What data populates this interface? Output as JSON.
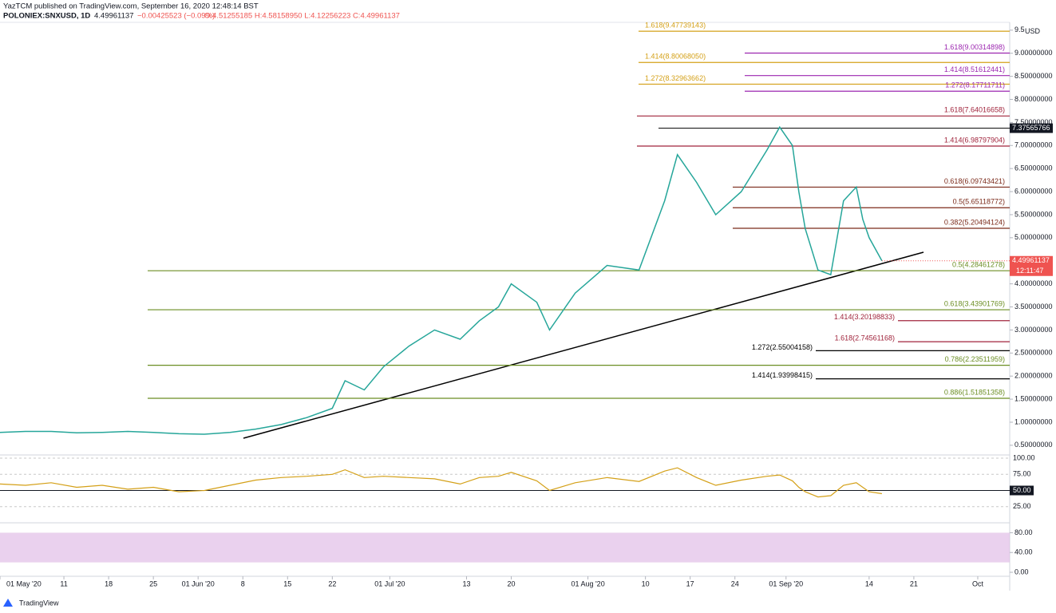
{
  "header": {
    "publisher": "YazTCM published on TradingView.com, September 16, 2020 12:48:14 BST",
    "symbol": "POLONIEX:SNXUSD, 1D",
    "last": "4.49961137",
    "change": "−0.00425523 (−0.09%)",
    "ohlc": "O:4.51255185 H:4.58158950 L:4.12256223 C:4.49961137"
  },
  "chart_data": {
    "type": "line",
    "x": [
      0,
      4,
      8,
      12,
      16,
      20,
      24,
      28,
      32,
      36,
      40,
      44,
      48,
      52,
      54,
      57,
      60,
      64,
      68,
      72,
      75,
      78,
      80,
      84,
      86,
      90,
      95,
      100,
      104,
      106,
      109,
      112,
      116,
      120,
      122,
      124,
      125,
      126,
      128,
      130,
      132,
      134,
      135,
      136,
      138
    ],
    "values": [
      0.78,
      0.8,
      0.8,
      0.77,
      0.78,
      0.8,
      0.78,
      0.75,
      0.74,
      0.78,
      0.85,
      0.95,
      1.1,
      1.3,
      1.9,
      1.7,
      2.2,
      2.65,
      3.0,
      2.8,
      3.2,
      3.5,
      4.0,
      3.6,
      3.0,
      3.8,
      4.4,
      4.3,
      5.8,
      6.8,
      6.2,
      5.5,
      6.0,
      6.9,
      7.4,
      7.0,
      6.0,
      5.2,
      4.3,
      4.2,
      5.8,
      6.1,
      5.4,
      5.0,
      4.5
    ],
    "color": "#26a69a",
    "xlim": [
      0,
      158
    ],
    "xticks": [
      {
        "value": 0,
        "label": "01 May '20"
      },
      {
        "value": 10,
        "label": "11"
      },
      {
        "value": 17,
        "label": "18"
      },
      {
        "value": 24,
        "label": "25"
      },
      {
        "value": 31,
        "label": "01 Jun '20"
      },
      {
        "value": 38,
        "label": "8"
      },
      {
        "value": 45,
        "label": "15"
      },
      {
        "value": 52,
        "label": "22"
      },
      {
        "value": 61,
        "label": "01 Jul '20"
      },
      {
        "value": 73,
        "label": "13"
      },
      {
        "value": 80,
        "label": "20"
      },
      {
        "value": 92,
        "label": "01 Aug '20"
      },
      {
        "value": 101,
        "label": "10"
      },
      {
        "value": 108,
        "label": "17"
      },
      {
        "value": 115,
        "label": "24"
      },
      {
        "value": 123,
        "label": "01 Sep '20"
      },
      {
        "value": 136,
        "label": "14"
      },
      {
        "value": 143,
        "label": "21"
      },
      {
        "value": 153,
        "label": "Oct"
      }
    ],
    "ylim": [
      0.29,
      9.67
    ],
    "yticks": [
      {
        "value": 0.5,
        "label": "0.50000000"
      },
      {
        "value": 1,
        "label": "1.00000000"
      },
      {
        "value": 1.5,
        "label": "1.50000000"
      },
      {
        "value": 2,
        "label": "2.00000000"
      },
      {
        "value": 2.5,
        "label": "2.50000000"
      },
      {
        "value": 3,
        "label": "3.00000000"
      },
      {
        "value": 3.5,
        "label": "3.50000000"
      },
      {
        "value": 4,
        "label": "4.00000000"
      },
      {
        "value": 4.5,
        "label": "4.50000000"
      },
      {
        "value": 5,
        "label": "5.00000000"
      },
      {
        "value": 5.5,
        "label": "5.50000000"
      },
      {
        "value": 6,
        "label": "6.00000000"
      },
      {
        "value": 6.5,
        "label": "6.50000000"
      },
      {
        "value": 7,
        "label": "7.00000000"
      },
      {
        "value": 7.5,
        "label": "7.50000000"
      },
      {
        "value": 8,
        "label": "8.00000000"
      },
      {
        "value": 8.5,
        "label": "8.50000000"
      },
      {
        "value": 9,
        "label": "9.00000000"
      },
      9.5
    ],
    "currency": "USD",
    "levels": [
      {
        "label": "1.618(9.47739143)",
        "value": 9.47739143,
        "color": "#d4a017"
      },
      {
        "label": "1.618(9.00314898)",
        "value": 9.00314898,
        "color": "#9c27b0"
      },
      {
        "label": "1.414(8.80068050)",
        "value": 8.8006805,
        "color": "#d4a017"
      },
      {
        "label": "1.414(8.51612441)",
        "value": 8.51612441,
        "color": "#9c27b0"
      },
      {
        "label": "1.272(8.32963662)",
        "value": 8.32963662,
        "color": "#d4a017"
      },
      {
        "label": "1.272(8.17711711)",
        "value": 8.17711711,
        "color": "#9c27b0"
      },
      {
        "label": "1.618(7.64016658)",
        "value": 7.64016658,
        "color": "#a0243c"
      },
      {
        "label": "1.414(6.98797904)",
        "value": 6.98797904,
        "color": "#a0243c"
      },
      {
        "label": "0.618(6.09743421)",
        "value": 6.09743421,
        "color": "#7b2a1a"
      },
      {
        "label": "0.5(5.65118772)",
        "value": 5.65118772,
        "color": "#7b2a1a"
      },
      {
        "label": "0.382(5.20494124)",
        "value": 5.20494124,
        "color": "#7b2a1a"
      },
      {
        "label": "0.5(4.28461278)",
        "value": 4.28461278,
        "color": "#6b8e23"
      },
      {
        "label": "0.618(3.43901769)",
        "value": 3.43901769,
        "color": "#6b8e23"
      },
      {
        "label": "1.414(3.20198833)",
        "value": 3.20198833,
        "color": "#a0243c"
      },
      {
        "label": "1.618(2.74561168)",
        "value": 2.74561168,
        "color": "#a0243c"
      },
      {
        "label": "1.272(2.55004158)",
        "value": 2.55004158,
        "color": "#000000"
      },
      {
        "label": "0.786(2.23511959)",
        "value": 2.23511959,
        "color": "#6b8e23"
      },
      {
        "label": "1.414(1.93998415)",
        "value": 1.93998415,
        "color": "#000000"
      },
      {
        "label": "0.886(1.51851358)",
        "value": 1.51851358,
        "color": "#6b8e23"
      }
    ],
    "marked_price": {
      "value": 7.37565766,
      "label": "7.37565766"
    },
    "current_price": {
      "value": 4.49961137,
      "label": "4.49961137",
      "countdown": "12:11:47"
    }
  },
  "rsi": {
    "values": [
      60,
      58,
      62,
      55,
      58,
      52,
      55,
      48,
      50,
      58,
      66,
      70,
      72,
      75,
      82,
      70,
      72,
      70,
      68,
      60,
      70,
      72,
      78,
      65,
      50,
      62,
      70,
      64,
      80,
      85,
      70,
      58,
      66,
      72,
      74,
      65,
      55,
      48,
      40,
      42,
      58,
      62,
      55,
      48,
      45
    ],
    "color": "#d4a017",
    "ylim": [
      0,
      100
    ],
    "yticks": [
      {
        "value": 100,
        "label": "100.00"
      },
      {
        "value": 75,
        "label": "75.00"
      },
      {
        "value": 50,
        "label": "50.00"
      },
      {
        "value": 25,
        "label": "25.00"
      }
    ]
  },
  "stoch": {
    "ylim": [
      0,
      100
    ],
    "band": [
      20,
      80
    ],
    "yticks": [
      {
        "value": 80,
        "label": "80.00"
      },
      {
        "value": 40,
        "label": "40.00"
      },
      {
        "value": 0,
        "label": "0.00"
      }
    ]
  },
  "footer": {
    "brand": "TradingView"
  }
}
